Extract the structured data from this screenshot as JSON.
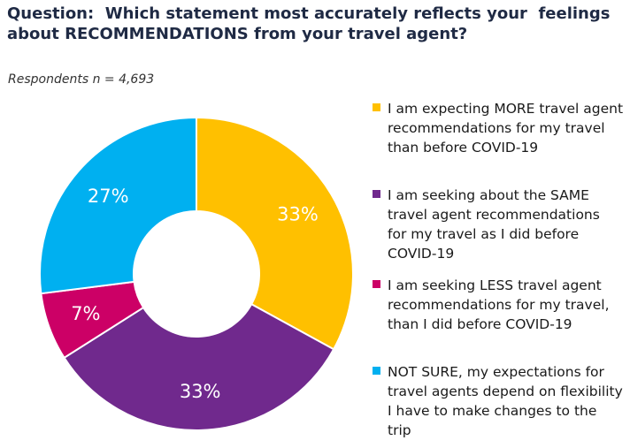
{
  "question": {
    "lines": [
      "Question:  Which statement most accurately reflects your  feelings",
      "about RECOMMENDATIONS from your travel agent?"
    ]
  },
  "respondents": "Respondents n = 4,693",
  "chart_data": {
    "type": "pie",
    "donut": true,
    "title": "Question:  Which statement most accurately reflects your  feelings about RECOMMENDATIONS from your travel agent?",
    "subtitle": "Respondents n = 4,693",
    "legend_position": "right",
    "slices": [
      {
        "legend_lines": [
          "I am expecting MORE travel agent",
          "recommendations for my travel",
          "than before COVID-19"
        ],
        "value": 33,
        "label": "33%",
        "color": "#FFC000"
      },
      {
        "legend_lines": [
          "I am seeking about the SAME",
          "travel agent recommendations",
          "for my travel as I did before",
          "COVID-19"
        ],
        "value": 33,
        "label": "33%",
        "color": "#70298D"
      },
      {
        "legend_lines": [
          "I am seeking LESS travel agent",
          "recommendations for my travel,",
          "than I did before COVID-19"
        ],
        "value": 7,
        "label": "7%",
        "color": "#CC0066"
      },
      {
        "legend_lines": [
          "NOT SURE, my expectations for",
          "travel agents depend on flexibility",
          "I have to make changes to the",
          "trip"
        ],
        "value": 27,
        "label": "27%",
        "color": "#00B0F0"
      }
    ]
  }
}
